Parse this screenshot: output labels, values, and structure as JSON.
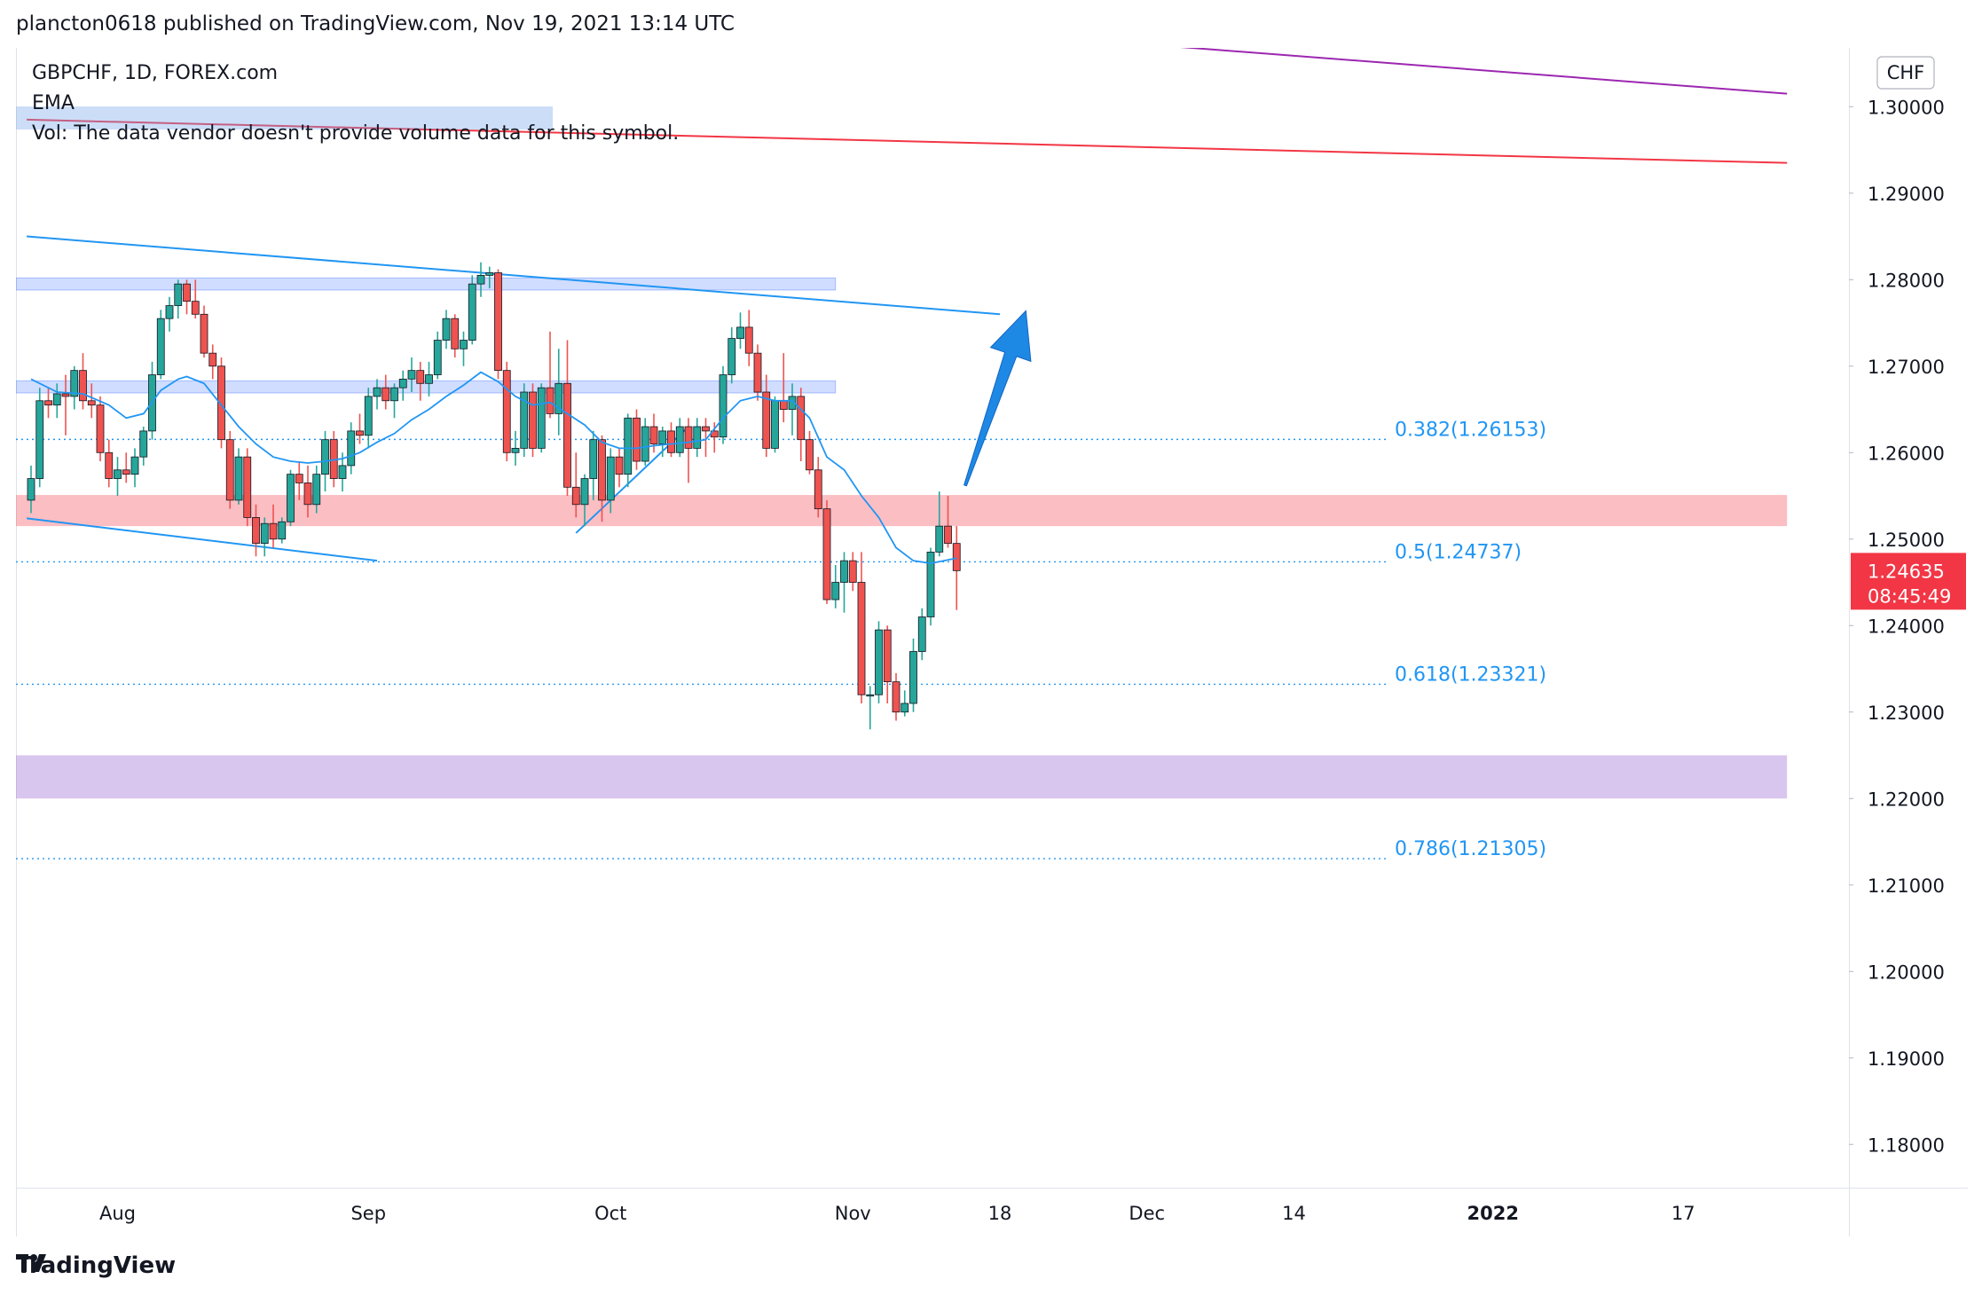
{
  "header": {
    "published": "plancton0618 published on TradingView.com, Nov 19, 2021 13:14 UTC"
  },
  "legend": {
    "symbol": "GBPCHF, 1D, FOREX.com",
    "indicator": "EMA",
    "volume_note": "Vol: The data vendor doesn't provide volume data for this symbol."
  },
  "footer": {
    "brand": "TradingView"
  },
  "colors": {
    "up": "#26a69a",
    "down": "#ef5350",
    "ema": "#2196f3",
    "accent": "#f23645"
  },
  "chart_data": {
    "type": "candlestick",
    "symbol": "GBPCHF",
    "timeframe": "1D",
    "source": "FOREX.com",
    "currency_label": "CHF",
    "ylim": [
      1.175,
      1.3068
    ],
    "y_ticks": [
      "1.30000",
      "1.29000",
      "1.28000",
      "1.27000",
      "1.26000",
      "1.25000",
      "1.24000",
      "1.23000",
      "1.22000",
      "1.21000",
      "1.20000",
      "1.19000",
      "1.18000"
    ],
    "x_ticks": [
      {
        "label": "Aug",
        "bar": 10
      },
      {
        "label": "Sep",
        "bar": 39
      },
      {
        "label": "Oct",
        "bar": 67
      },
      {
        "label": "Nov",
        "bar": 95
      },
      {
        "label": "18",
        "bar": 112
      },
      {
        "label": "Dec",
        "bar": 129
      },
      {
        "label": "14",
        "bar": 146
      },
      {
        "label": "2022",
        "bar": 169
      },
      {
        "label": "17",
        "bar": 191
      }
    ],
    "current_price": "1.24635",
    "countdown": "08:45:49",
    "total_bars": 203,
    "candles": [
      {
        "i": 0,
        "o": 1.2545,
        "h": 1.2585,
        "l": 1.253,
        "c": 1.257
      },
      {
        "i": 1,
        "o": 1.257,
        "h": 1.2675,
        "l": 1.256,
        "c": 1.266
      },
      {
        "i": 2,
        "o": 1.266,
        "h": 1.2675,
        "l": 1.264,
        "c": 1.2655
      },
      {
        "i": 3,
        "o": 1.2655,
        "h": 1.268,
        "l": 1.264,
        "c": 1.2668
      },
      {
        "i": 4,
        "o": 1.2668,
        "h": 1.269,
        "l": 1.262,
        "c": 1.2665
      },
      {
        "i": 5,
        "o": 1.2665,
        "h": 1.27,
        "l": 1.265,
        "c": 1.2695
      },
      {
        "i": 6,
        "o": 1.2695,
        "h": 1.2715,
        "l": 1.265,
        "c": 1.266
      },
      {
        "i": 7,
        "o": 1.266,
        "h": 1.268,
        "l": 1.264,
        "c": 1.2655
      },
      {
        "i": 8,
        "o": 1.2655,
        "h": 1.2665,
        "l": 1.259,
        "c": 1.26
      },
      {
        "i": 9,
        "o": 1.26,
        "h": 1.2615,
        "l": 1.256,
        "c": 1.257
      },
      {
        "i": 10,
        "o": 1.257,
        "h": 1.2595,
        "l": 1.255,
        "c": 1.258
      },
      {
        "i": 11,
        "o": 1.258,
        "h": 1.26,
        "l": 1.2565,
        "c": 1.2575
      },
      {
        "i": 12,
        "o": 1.2575,
        "h": 1.2605,
        "l": 1.256,
        "c": 1.2595
      },
      {
        "i": 13,
        "o": 1.2595,
        "h": 1.263,
        "l": 1.2585,
        "c": 1.2625
      },
      {
        "i": 14,
        "o": 1.2625,
        "h": 1.2705,
        "l": 1.2615,
        "c": 1.269
      },
      {
        "i": 15,
        "o": 1.269,
        "h": 1.2765,
        "l": 1.2685,
        "c": 1.2755
      },
      {
        "i": 16,
        "o": 1.2755,
        "h": 1.278,
        "l": 1.274,
        "c": 1.277
      },
      {
        "i": 17,
        "o": 1.277,
        "h": 1.28,
        "l": 1.2755,
        "c": 1.2795
      },
      {
        "i": 18,
        "o": 1.2795,
        "h": 1.28,
        "l": 1.276,
        "c": 1.2775
      },
      {
        "i": 19,
        "o": 1.2775,
        "h": 1.28,
        "l": 1.2755,
        "c": 1.276
      },
      {
        "i": 20,
        "o": 1.276,
        "h": 1.277,
        "l": 1.271,
        "c": 1.2715
      },
      {
        "i": 21,
        "o": 1.2715,
        "h": 1.2725,
        "l": 1.2685,
        "c": 1.27
      },
      {
        "i": 22,
        "o": 1.27,
        "h": 1.271,
        "l": 1.2605,
        "c": 1.2615
      },
      {
        "i": 23,
        "o": 1.2615,
        "h": 1.2625,
        "l": 1.2535,
        "c": 1.2545
      },
      {
        "i": 24,
        "o": 1.2545,
        "h": 1.2605,
        "l": 1.254,
        "c": 1.2595
      },
      {
        "i": 25,
        "o": 1.2595,
        "h": 1.2605,
        "l": 1.2515,
        "c": 1.2525
      },
      {
        "i": 26,
        "o": 1.2525,
        "h": 1.254,
        "l": 1.248,
        "c": 1.2495
      },
      {
        "i": 27,
        "o": 1.2495,
        "h": 1.2525,
        "l": 1.248,
        "c": 1.2518
      },
      {
        "i": 28,
        "o": 1.2518,
        "h": 1.254,
        "l": 1.249,
        "c": 1.25
      },
      {
        "i": 29,
        "o": 1.25,
        "h": 1.2525,
        "l": 1.2495,
        "c": 1.252
      },
      {
        "i": 30,
        "o": 1.252,
        "h": 1.258,
        "l": 1.2515,
        "c": 1.2575
      },
      {
        "i": 31,
        "o": 1.2575,
        "h": 1.259,
        "l": 1.2545,
        "c": 1.2565
      },
      {
        "i": 32,
        "o": 1.2565,
        "h": 1.2585,
        "l": 1.2525,
        "c": 1.254
      },
      {
        "i": 33,
        "o": 1.254,
        "h": 1.2585,
        "l": 1.253,
        "c": 1.2575
      },
      {
        "i": 34,
        "o": 1.2575,
        "h": 1.2625,
        "l": 1.2555,
        "c": 1.2615
      },
      {
        "i": 35,
        "o": 1.2615,
        "h": 1.2625,
        "l": 1.256,
        "c": 1.257
      },
      {
        "i": 36,
        "o": 1.257,
        "h": 1.26,
        "l": 1.2555,
        "c": 1.2585
      },
      {
        "i": 37,
        "o": 1.2585,
        "h": 1.2635,
        "l": 1.2575,
        "c": 1.2625
      },
      {
        "i": 38,
        "o": 1.2625,
        "h": 1.2645,
        "l": 1.261,
        "c": 1.262
      },
      {
        "i": 39,
        "o": 1.262,
        "h": 1.2675,
        "l": 1.2605,
        "c": 1.2665
      },
      {
        "i": 40,
        "o": 1.2665,
        "h": 1.2685,
        "l": 1.265,
        "c": 1.2675
      },
      {
        "i": 41,
        "o": 1.2675,
        "h": 1.269,
        "l": 1.265,
        "c": 1.266
      },
      {
        "i": 42,
        "o": 1.266,
        "h": 1.268,
        "l": 1.264,
        "c": 1.2675
      },
      {
        "i": 43,
        "o": 1.2675,
        "h": 1.2695,
        "l": 1.266,
        "c": 1.2685
      },
      {
        "i": 44,
        "o": 1.2685,
        "h": 1.271,
        "l": 1.267,
        "c": 1.2695
      },
      {
        "i": 45,
        "o": 1.2695,
        "h": 1.2705,
        "l": 1.266,
        "c": 1.268
      },
      {
        "i": 46,
        "o": 1.268,
        "h": 1.2705,
        "l": 1.2665,
        "c": 1.269
      },
      {
        "i": 47,
        "o": 1.269,
        "h": 1.274,
        "l": 1.2685,
        "c": 1.273
      },
      {
        "i": 48,
        "o": 1.273,
        "h": 1.2765,
        "l": 1.272,
        "c": 1.2755
      },
      {
        "i": 49,
        "o": 1.2755,
        "h": 1.276,
        "l": 1.271,
        "c": 1.272
      },
      {
        "i": 50,
        "o": 1.272,
        "h": 1.274,
        "l": 1.27,
        "c": 1.273
      },
      {
        "i": 51,
        "o": 1.273,
        "h": 1.2805,
        "l": 1.2725,
        "c": 1.2795
      },
      {
        "i": 52,
        "o": 1.2795,
        "h": 1.282,
        "l": 1.278,
        "c": 1.2805
      },
      {
        "i": 53,
        "o": 1.2805,
        "h": 1.2815,
        "l": 1.279,
        "c": 1.2808
      },
      {
        "i": 54,
        "o": 1.2808,
        "h": 1.2812,
        "l": 1.2685,
        "c": 1.2695
      },
      {
        "i": 55,
        "o": 1.2695,
        "h": 1.2705,
        "l": 1.259,
        "c": 1.26
      },
      {
        "i": 56,
        "o": 1.26,
        "h": 1.2625,
        "l": 1.2585,
        "c": 1.2605
      },
      {
        "i": 57,
        "o": 1.2605,
        "h": 1.268,
        "l": 1.2595,
        "c": 1.267
      },
      {
        "i": 58,
        "o": 1.267,
        "h": 1.268,
        "l": 1.2595,
        "c": 1.2605
      },
      {
        "i": 59,
        "o": 1.2605,
        "h": 1.268,
        "l": 1.26,
        "c": 1.2675
      },
      {
        "i": 60,
        "o": 1.2675,
        "h": 1.274,
        "l": 1.264,
        "c": 1.2645
      },
      {
        "i": 61,
        "o": 1.2645,
        "h": 1.272,
        "l": 1.262,
        "c": 1.268
      },
      {
        "i": 62,
        "o": 1.268,
        "h": 1.273,
        "l": 1.255,
        "c": 1.256
      },
      {
        "i": 63,
        "o": 1.256,
        "h": 1.26,
        "l": 1.2525,
        "c": 1.254
      },
      {
        "i": 64,
        "o": 1.254,
        "h": 1.2575,
        "l": 1.2515,
        "c": 1.257
      },
      {
        "i": 65,
        "o": 1.257,
        "h": 1.2625,
        "l": 1.2545,
        "c": 1.2615
      },
      {
        "i": 66,
        "o": 1.2615,
        "h": 1.262,
        "l": 1.252,
        "c": 1.2545
      },
      {
        "i": 67,
        "o": 1.2545,
        "h": 1.2605,
        "l": 1.253,
        "c": 1.2595
      },
      {
        "i": 68,
        "o": 1.2595,
        "h": 1.2605,
        "l": 1.256,
        "c": 1.2575
      },
      {
        "i": 69,
        "o": 1.2575,
        "h": 1.2645,
        "l": 1.256,
        "c": 1.264
      },
      {
        "i": 70,
        "o": 1.264,
        "h": 1.265,
        "l": 1.258,
        "c": 1.259
      },
      {
        "i": 71,
        "o": 1.259,
        "h": 1.264,
        "l": 1.2585,
        "c": 1.263
      },
      {
        "i": 72,
        "o": 1.263,
        "h": 1.2645,
        "l": 1.26,
        "c": 1.261
      },
      {
        "i": 73,
        "o": 1.261,
        "h": 1.263,
        "l": 1.2595,
        "c": 1.2625
      },
      {
        "i": 74,
        "o": 1.2625,
        "h": 1.2635,
        "l": 1.2595,
        "c": 1.26
      },
      {
        "i": 75,
        "o": 1.26,
        "h": 1.264,
        "l": 1.2595,
        "c": 1.263
      },
      {
        "i": 76,
        "o": 1.263,
        "h": 1.264,
        "l": 1.2565,
        "c": 1.2605
      },
      {
        "i": 77,
        "o": 1.2605,
        "h": 1.264,
        "l": 1.2595,
        "c": 1.263
      },
      {
        "i": 78,
        "o": 1.263,
        "h": 1.264,
        "l": 1.2595,
        "c": 1.2625
      },
      {
        "i": 79,
        "o": 1.2625,
        "h": 1.2635,
        "l": 1.26,
        "c": 1.2618
      },
      {
        "i": 80,
        "o": 1.2618,
        "h": 1.27,
        "l": 1.261,
        "c": 1.269
      },
      {
        "i": 81,
        "o": 1.269,
        "h": 1.2745,
        "l": 1.268,
        "c": 1.2732
      },
      {
        "i": 82,
        "o": 1.2732,
        "h": 1.2762,
        "l": 1.272,
        "c": 1.2745
      },
      {
        "i": 83,
        "o": 1.2745,
        "h": 1.2765,
        "l": 1.27,
        "c": 1.2715
      },
      {
        "i": 84,
        "o": 1.2715,
        "h": 1.2725,
        "l": 1.266,
        "c": 1.267
      },
      {
        "i": 85,
        "o": 1.267,
        "h": 1.269,
        "l": 1.2595,
        "c": 1.2605
      },
      {
        "i": 86,
        "o": 1.2605,
        "h": 1.2665,
        "l": 1.26,
        "c": 1.266
      },
      {
        "i": 87,
        "o": 1.266,
        "h": 1.2715,
        "l": 1.2635,
        "c": 1.265
      },
      {
        "i": 88,
        "o": 1.265,
        "h": 1.268,
        "l": 1.262,
        "c": 1.2665
      },
      {
        "i": 89,
        "o": 1.2665,
        "h": 1.2675,
        "l": 1.259,
        "c": 1.2615
      },
      {
        "i": 90,
        "o": 1.2615,
        "h": 1.2625,
        "l": 1.2575,
        "c": 1.258
      },
      {
        "i": 91,
        "o": 1.258,
        "h": 1.2595,
        "l": 1.2525,
        "c": 1.2535
      },
      {
        "i": 92,
        "o": 1.2535,
        "h": 1.2545,
        "l": 1.2425,
        "c": 1.243
      },
      {
        "i": 93,
        "o": 1.243,
        "h": 1.247,
        "l": 1.242,
        "c": 1.245
      },
      {
        "i": 94,
        "o": 1.245,
        "h": 1.2485,
        "l": 1.2415,
        "c": 1.2475
      },
      {
        "i": 95,
        "o": 1.2475,
        "h": 1.2485,
        "l": 1.244,
        "c": 1.245
      },
      {
        "i": 96,
        "o": 1.245,
        "h": 1.2485,
        "l": 1.231,
        "c": 1.232
      },
      {
        "i": 97,
        "o": 1.232,
        "h": 1.233,
        "l": 1.228,
        "c": 1.232
      },
      {
        "i": 98,
        "o": 1.232,
        "h": 1.2405,
        "l": 1.231,
        "c": 1.2395
      },
      {
        "i": 99,
        "o": 1.2395,
        "h": 1.24,
        "l": 1.231,
        "c": 1.2335
      },
      {
        "i": 100,
        "o": 1.2335,
        "h": 1.2345,
        "l": 1.229,
        "c": 1.23
      },
      {
        "i": 101,
        "o": 1.23,
        "h": 1.2325,
        "l": 1.2295,
        "c": 1.231
      },
      {
        "i": 102,
        "o": 1.231,
        "h": 1.2385,
        "l": 1.23,
        "c": 1.237
      },
      {
        "i": 103,
        "o": 1.237,
        "h": 1.242,
        "l": 1.236,
        "c": 1.241
      },
      {
        "i": 104,
        "o": 1.241,
        "h": 1.249,
        "l": 1.24,
        "c": 1.2485
      },
      {
        "i": 105,
        "o": 1.2485,
        "h": 1.2555,
        "l": 1.248,
        "c": 1.2515
      },
      {
        "i": 106,
        "o": 1.2515,
        "h": 1.255,
        "l": 1.249,
        "c": 1.2495
      },
      {
        "i": 107,
        "o": 1.2495,
        "h": 1.2515,
        "l": 1.2418,
        "c": 1.24635
      }
    ],
    "ema": [
      [
        0,
        1.2685
      ],
      [
        3,
        1.267
      ],
      [
        6,
        1.2668
      ],
      [
        9,
        1.2655
      ],
      [
        11,
        1.264
      ],
      [
        13,
        1.2645
      ],
      [
        15,
        1.2672
      ],
      [
        17,
        1.2685
      ],
      [
        18,
        1.2688
      ],
      [
        20,
        1.268
      ],
      [
        22,
        1.2655
      ],
      [
        24,
        1.263
      ],
      [
        26,
        1.261
      ],
      [
        28,
        1.2595
      ],
      [
        30,
        1.259
      ],
      [
        32,
        1.2588
      ],
      [
        34,
        1.259
      ],
      [
        36,
        1.2593
      ],
      [
        38,
        1.26
      ],
      [
        40,
        1.2612
      ],
      [
        42,
        1.2622
      ],
      [
        44,
        1.2638
      ],
      [
        46,
        1.265
      ],
      [
        48,
        1.2665
      ],
      [
        50,
        1.2678
      ],
      [
        52,
        1.2693
      ],
      [
        54,
        1.2682
      ],
      [
        56,
        1.2665
      ],
      [
        58,
        1.2655
      ],
      [
        60,
        1.2658
      ],
      [
        62,
        1.2645
      ],
      [
        64,
        1.2632
      ],
      [
        66,
        1.2612
      ],
      [
        68,
        1.2605
      ],
      [
        70,
        1.2605
      ],
      [
        72,
        1.2608
      ],
      [
        74,
        1.261
      ],
      [
        76,
        1.2612
      ],
      [
        78,
        1.2615
      ],
      [
        80,
        1.264
      ],
      [
        82,
        1.266
      ],
      [
        84,
        1.2665
      ],
      [
        86,
        1.266
      ],
      [
        88,
        1.266
      ],
      [
        90,
        1.264
      ],
      [
        92,
        1.2595
      ],
      [
        94,
        1.258
      ],
      [
        96,
        1.255
      ],
      [
        98,
        1.2525
      ],
      [
        100,
        1.249
      ],
      [
        102,
        1.2475
      ],
      [
        104,
        1.2472
      ],
      [
        106,
        1.2476
      ],
      [
        107,
        1.2478
      ]
    ],
    "fibonacci": [
      {
        "label": "0.382(1.26153)",
        "price": 1.26153
      },
      {
        "label": "0.5(1.24737)",
        "price": 1.24737
      },
      {
        "label": "0.618(1.23321)",
        "price": 1.23321
      },
      {
        "label": "0.786(1.21305)",
        "price": 1.21305
      }
    ],
    "zones": [
      {
        "name": "resistance-zone-top",
        "from": 1.2788,
        "to": 1.2802,
        "end_bar": 93,
        "color": "#2962ff"
      },
      {
        "name": "resistance-zone-mid",
        "from": 1.2669,
        "to": 1.2683,
        "end_bar": 93,
        "color": "#2962ff"
      },
      {
        "name": "supply-zone-red",
        "from": 1.2515,
        "to": 1.2551,
        "end_bar": 203,
        "color": "#f23645"
      },
      {
        "name": "demand-zone-purple",
        "from": 1.22,
        "to": 1.225,
        "end_bar": 203,
        "color": "#9c6ad3"
      }
    ],
    "trendlines": [
      {
        "name": "channel-top-line",
        "x1": -0.5,
        "y1": 1.285,
        "x2": 112,
        "y2": 1.276,
        "color": "#2196f3"
      },
      {
        "name": "channel-bottom-line",
        "x1": -0.5,
        "y1": 1.2524,
        "x2": 40,
        "y2": 1.2475,
        "color": "#2196f3"
      },
      {
        "name": "rising-trendline",
        "x1": 63,
        "y1": 1.2507,
        "x2": 76,
        "y2": 1.263,
        "color": "#2196f3"
      },
      {
        "name": "red-long-trendline",
        "x1": -0.5,
        "y1": 1.2985,
        "x2": 203,
        "y2": 1.2935,
        "color": "#f23645"
      },
      {
        "name": "purple-trendline",
        "x1": 129,
        "y1": 1.3072,
        "x2": 203,
        "y2": 1.3015,
        "color": "#9c27b0"
      }
    ],
    "projection_arrow": {
      "x1": 108,
      "y1": 1.2562,
      "x2": 115,
      "y2": 1.2764
    }
  }
}
